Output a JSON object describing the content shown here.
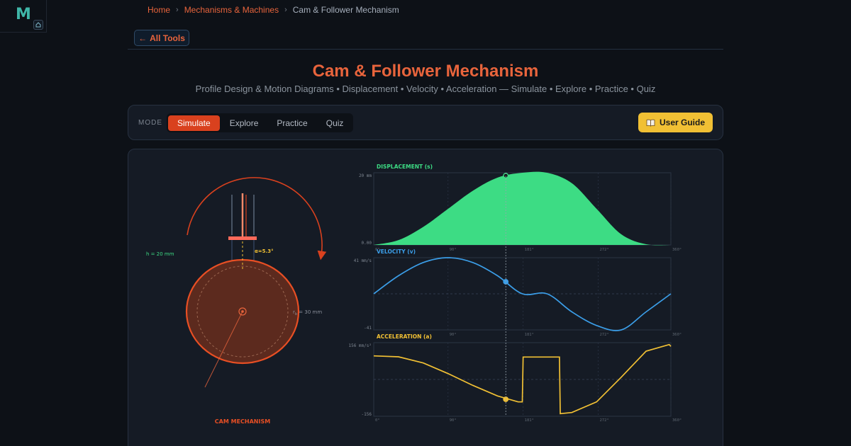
{
  "logo": {
    "letter": "M"
  },
  "breadcrumb": {
    "home": "Home",
    "section": "Mechanisms & Machines",
    "current": "Cam & Follower Mechanism",
    "separator": "›"
  },
  "back_button": {
    "label": "All Tools",
    "arrow": "←"
  },
  "page": {
    "title": "Cam & Follower Mechanism",
    "subtitle": "Profile Design & Motion Diagrams • Displacement • Velocity • Acceleration — Simulate • Explore • Practice • Quiz"
  },
  "mode": {
    "label": "MODE",
    "tabs": [
      {
        "label": "Simulate",
        "active": true
      },
      {
        "label": "Explore",
        "active": false
      },
      {
        "label": "Practice",
        "active": false
      },
      {
        "label": "Quiz",
        "active": false
      }
    ],
    "guide_label": "User Guide",
    "guide_icon": "book-icon"
  },
  "mechanism": {
    "caption": "CAM MECHANISM",
    "lift_label": "h = 20 mm",
    "angle_label": "α=5.3°",
    "base_radius_label": "r",
    "base_radius_sub": "b",
    "base_radius_value": " = 30 mm",
    "cam_color": "#e8643c",
    "angle_color": "#f1c034",
    "lift_color": "#3ddc84"
  },
  "chart_data": [
    {
      "type": "area",
      "title": "DISPLACEMENT (s)",
      "color": "#3ddc84",
      "y_max_label": "20 mm",
      "y_min_label": "0.00",
      "x_ticks": [
        "0°",
        "90°",
        "181°",
        "272°",
        "360°"
      ],
      "ylim": [
        0,
        20
      ],
      "x": [
        0,
        30,
        60,
        90,
        120,
        150,
        180,
        210,
        240,
        270,
        300,
        330,
        360
      ],
      "values": [
        0,
        1.34,
        5,
        10,
        15,
        18.66,
        20,
        20,
        17.1,
        10,
        2.93,
        0.19,
        0
      ],
      "marker_angle": 5.3
    },
    {
      "type": "line",
      "title": "VELOCITY (v)",
      "color": "#3b9ee8",
      "y_max_label": "41 mm/s",
      "y_min_label": "-41",
      "x_ticks": [
        "90°",
        "181°",
        "272°",
        "360°"
      ],
      "ylim": [
        -41,
        41
      ],
      "x": [
        0,
        30,
        60,
        90,
        120,
        150,
        180,
        210,
        240,
        270,
        300,
        330,
        360
      ],
      "values": [
        0,
        20.5,
        35.5,
        41,
        35.5,
        20.5,
        0,
        0,
        -20.5,
        -36,
        -41,
        -20.5,
        0
      ],
      "marker_angle": 5.3
    },
    {
      "type": "line",
      "title": "ACCELERATION (a)",
      "color": "#f1c034",
      "y_max_label": "156 mm/s²",
      "y_min_label": "-156",
      "x_ticks": [
        "0°",
        "90°",
        "181°",
        "272°",
        "360°"
      ],
      "ylim": [
        -156,
        156
      ],
      "x": [
        0,
        30,
        60,
        90,
        120,
        150,
        175,
        180,
        181,
        215,
        225,
        226,
        240,
        270,
        300,
        330,
        358,
        360
      ],
      "values": [
        100,
        96,
        70,
        25,
        -25,
        -70,
        -95,
        -95,
        95,
        95,
        95,
        -145,
        -140,
        -95,
        10,
        120,
        148,
        140
      ],
      "marker_angle": 5.3
    }
  ]
}
